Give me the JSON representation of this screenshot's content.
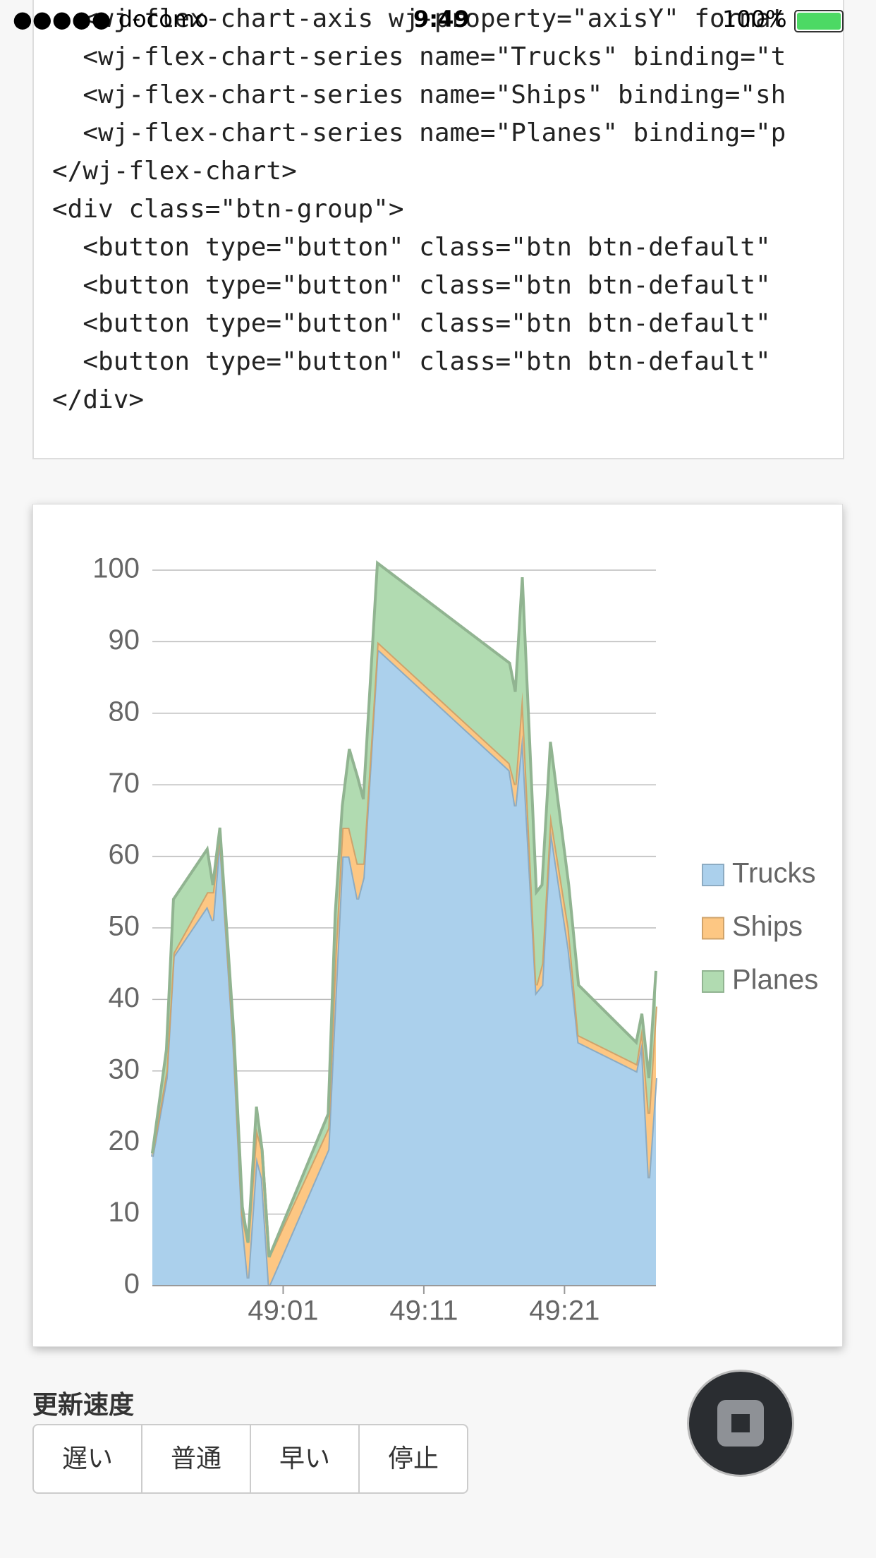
{
  "status_bar": {
    "carrier": "●●●●● docomo",
    "time": "9:49",
    "battery": "100%"
  },
  "code_lines": [
    "  <wj-flex-chart-axis wj-property=\"axisY\" format",
    "  <wj-flex-chart-series name=\"Trucks\" binding=\"t",
    "  <wj-flex-chart-series name=\"Ships\" binding=\"sh",
    "  <wj-flex-chart-series name=\"Planes\" binding=\"p",
    "</wj-flex-chart>",
    "<div class=\"btn-group\">",
    "  <button type=\"button\" class=\"btn btn-default\"",
    "  <button type=\"button\" class=\"btn btn-default\"",
    "  <button type=\"button\" class=\"btn btn-default\"",
    "  <button type=\"button\" class=\"btn btn-default\"",
    "</div>"
  ],
  "chart_data": {
    "type": "area",
    "stacked": true,
    "grid": true,
    "legend": "right",
    "x": [
      2931.7,
      2932.7,
      2933.2,
      2935.6,
      2936.0,
      2936.5,
      2937.5,
      2938.1,
      2938.5,
      2939.1,
      2939.5,
      2940.0,
      2944.2,
      2944.7,
      2945.2,
      2945.7,
      2946.3,
      2946.7,
      2947.7,
      2957.1,
      2957.5,
      2958.0,
      2959.0,
      2959.4,
      2960.0,
      2961.3,
      2962.0,
      2966.1,
      2966.5,
      2967.0,
      2967.5
    ],
    "series": [
      {
        "name": "Trucks",
        "color": "#abd0ec",
        "values": [
          18,
          29,
          46,
          53,
          51,
          63,
          33,
          9,
          1,
          18,
          15,
          0,
          19,
          40,
          60,
          60,
          54,
          57,
          89,
          72,
          67,
          77,
          41,
          42,
          64,
          47,
          34,
          30,
          34,
          15,
          29
        ]
      },
      {
        "name": "Ships",
        "color": "#fdc783",
        "values": [
          0.5,
          1,
          0.5,
          2,
          4,
          0.5,
          1,
          1,
          5,
          4,
          4,
          4,
          3,
          6,
          4,
          4,
          5,
          2,
          1,
          1,
          3,
          6,
          1,
          3,
          2,
          3,
          1,
          1,
          2,
          9,
          10
        ]
      },
      {
        "name": "Planes",
        "color": "#b1dbb1",
        "values": [
          0,
          3,
          7.5,
          6,
          1,
          0.5,
          1,
          1,
          0,
          3,
          0,
          0,
          2,
          6,
          3,
          11,
          12,
          9,
          11,
          14,
          13,
          16,
          13,
          11,
          10,
          6,
          7,
          3,
          2,
          5,
          5
        ]
      }
    ],
    "xlim": [
      2931.7,
      2967.5
    ],
    "xticks": [
      {
        "value": 2941,
        "label": "49:01"
      },
      {
        "value": 2951,
        "label": "49:11"
      },
      {
        "value": 2961,
        "label": "49:21"
      }
    ],
    "ylim": [
      0,
      100
    ],
    "yticks": [
      0,
      10,
      20,
      30,
      40,
      50,
      60,
      70,
      80,
      90,
      100
    ]
  },
  "speed_label": "更新速度",
  "buttons": [
    "遅い",
    "普通",
    "早い",
    "停止"
  ]
}
